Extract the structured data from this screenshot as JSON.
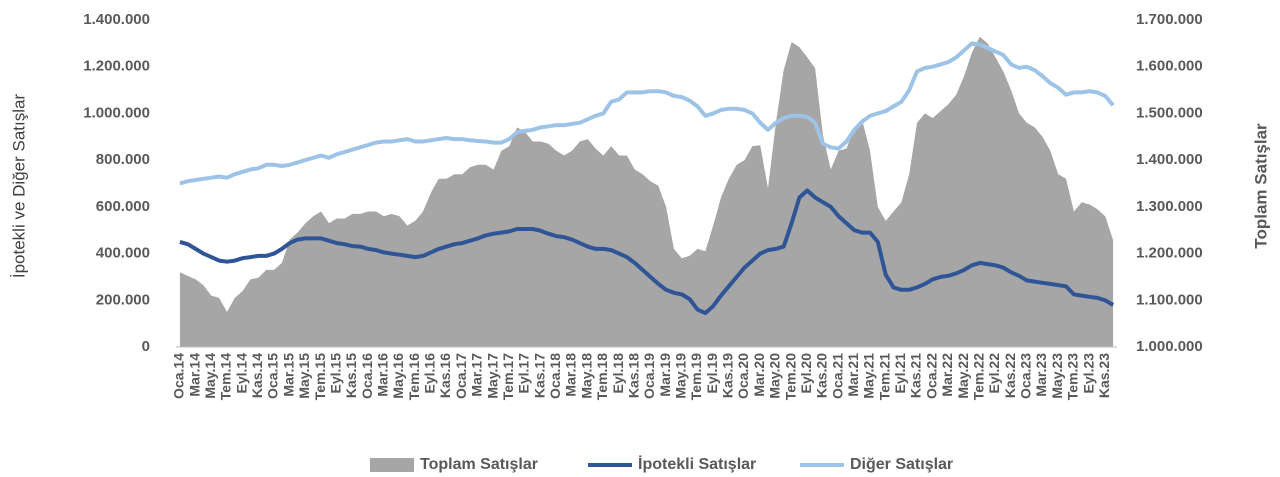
{
  "chart_data": {
    "type": "combo",
    "y_label": "İpotekli ve Diğer Satışlar",
    "y2_label": "Toplam Satışlar",
    "categories": [
      "Oca.14",
      null,
      "Mar.14",
      null,
      "May.14",
      null,
      "Tem.14",
      null,
      "Eyl.14",
      null,
      "Kas.14",
      null,
      "Oca.15",
      null,
      "Mar.15",
      null,
      "May.15",
      null,
      "Tem.15",
      null,
      "Eyl.15",
      null,
      "Kas.15",
      null,
      "Oca.16",
      null,
      "Mar.16",
      null,
      "May.16",
      null,
      "Tem.16",
      null,
      "Eyl.16",
      null,
      "Kas.16",
      null,
      "Oca.17",
      null,
      "Mar.17",
      null,
      "May.17",
      null,
      "Tem.17",
      null,
      "Eyl.17",
      null,
      "Kas.17",
      null,
      "Oca.18",
      null,
      "Mar.18",
      null,
      "May.18",
      null,
      "Tem.18",
      null,
      "Eyl.18",
      null,
      "Kas.18",
      null,
      "Oca.19",
      null,
      "Mar.19",
      null,
      "May.19",
      null,
      "Tem.19",
      null,
      "Eyl.19",
      null,
      "Kas.19",
      null,
      "Oca.20",
      null,
      "Mar.20",
      null,
      "May.20",
      null,
      "Tem.20",
      null,
      "Eyl.20",
      null,
      "Kas.20",
      null,
      "Oca.21",
      null,
      "Mar.21",
      null,
      "May.21",
      null,
      "Tem.21",
      null,
      "Eyl.21",
      null,
      "Kas.21",
      null,
      "Oca.22",
      null,
      "Mar.22",
      null,
      "May.22",
      null,
      "Tem.22",
      null,
      "Eyl.22",
      null,
      "Kas.22",
      null,
      "Oca.23",
      null,
      "Mar.23",
      null,
      "May.23",
      null,
      "Tem.23",
      null,
      "Eyl.23",
      null,
      "Kas.23",
      null
    ],
    "series": [
      {
        "name": "Toplam Satışlar",
        "kind": "area",
        "axis": "y2",
        "color": "#a6a6a6",
        "values": [
          1160000,
          1152000,
          1145000,
          1132000,
          1110000,
          1105000,
          1075000,
          1105000,
          1120000,
          1145000,
          1148000,
          1165000,
          1165000,
          1180000,
          1230000,
          1245000,
          1265000,
          1280000,
          1290000,
          1265000,
          1275000,
          1275000,
          1285000,
          1285000,
          1290000,
          1290000,
          1280000,
          1285000,
          1280000,
          1260000,
          1270000,
          1290000,
          1330000,
          1360000,
          1360000,
          1370000,
          1370000,
          1385000,
          1390000,
          1390000,
          1380000,
          1420000,
          1430000,
          1470000,
          1460000,
          1440000,
          1440000,
          1435000,
          1420000,
          1410000,
          1420000,
          1440000,
          1445000,
          1425000,
          1410000,
          1430000,
          1410000,
          1410000,
          1380000,
          1370000,
          1355000,
          1345000,
          1300000,
          1210000,
          1190000,
          1195000,
          1210000,
          1205000,
          1260000,
          1320000,
          1360000,
          1390000,
          1400000,
          1430000,
          1432000,
          1340000,
          1480000,
          1593000,
          1653000,
          1642000,
          1620000,
          1597000,
          1454000,
          1380000,
          1420000,
          1425000,
          1470000,
          1486000,
          1420000,
          1300000,
          1270000,
          1290000,
          1310000,
          1370000,
          1480000,
          1500000,
          1490000,
          1505000,
          1520000,
          1540000,
          1580000,
          1630000,
          1664000,
          1650000,
          1620000,
          1590000,
          1550000,
          1500000,
          1480000,
          1470000,
          1450000,
          1420000,
          1370000,
          1360000,
          1290000,
          1310000,
          1305000,
          1295000,
          1280000,
          1229000
        ]
      },
      {
        "name": "İpotekli Satışlar",
        "kind": "line",
        "color": "#2f5597",
        "values": [
          450000,
          440000,
          420000,
          400000,
          385000,
          370000,
          365000,
          370000,
          380000,
          385000,
          390000,
          390000,
          400000,
          420000,
          445000,
          460000,
          465000,
          465000,
          465000,
          455000,
          445000,
          440000,
          432000,
          430000,
          420000,
          415000,
          405000,
          400000,
          395000,
          390000,
          385000,
          390000,
          405000,
          420000,
          430000,
          440000,
          445000,
          455000,
          465000,
          478000,
          485000,
          490000,
          495000,
          505000,
          505000,
          505000,
          498000,
          485000,
          475000,
          470000,
          460000,
          445000,
          430000,
          420000,
          420000,
          415000,
          400000,
          385000,
          360000,
          330000,
          300000,
          270000,
          245000,
          232000,
          225000,
          205000,
          160000,
          145000,
          175000,
          220000,
          260000,
          300000,
          340000,
          370000,
          400000,
          415000,
          420000,
          430000,
          530000,
          640000,
          670000,
          640000,
          620000,
          600000,
          560000,
          530000,
          500000,
          490000,
          490000,
          450000,
          310000,
          255000,
          245000,
          245000,
          255000,
          270000,
          290000,
          300000,
          305000,
          315000,
          330000,
          350000,
          360000,
          355000,
          350000,
          340000,
          320000,
          305000,
          285000,
          280000,
          275000,
          270000,
          265000,
          260000,
          225000,
          220000,
          215000,
          210000,
          200000,
          180000
        ]
      },
      {
        "name": "Diğer Satışlar",
        "kind": "line",
        "color": "#9dc3e6",
        "values": [
          700000,
          710000,
          715000,
          720000,
          725000,
          730000,
          725000,
          740000,
          750000,
          760000,
          765000,
          780000,
          780000,
          775000,
          780000,
          790000,
          800000,
          810000,
          820000,
          810000,
          825000,
          835000,
          845000,
          855000,
          865000,
          875000,
          880000,
          880000,
          885000,
          890000,
          880000,
          880000,
          885000,
          890000,
          895000,
          890000,
          890000,
          885000,
          882000,
          880000,
          875000,
          875000,
          890000,
          920000,
          925000,
          930000,
          940000,
          945000,
          950000,
          950000,
          955000,
          960000,
          975000,
          990000,
          1000000,
          1050000,
          1060000,
          1090000,
          1090000,
          1090000,
          1095000,
          1095000,
          1090000,
          1075000,
          1070000,
          1055000,
          1030000,
          990000,
          1000000,
          1015000,
          1020000,
          1020000,
          1015000,
          1000000,
          960000,
          930000,
          960000,
          980000,
          990000,
          990000,
          985000,
          960000,
          870000,
          855000,
          850000,
          880000,
          930000,
          965000,
          990000,
          1000000,
          1010000,
          1030000,
          1050000,
          1100000,
          1180000,
          1195000,
          1200000,
          1210000,
          1220000,
          1240000,
          1270000,
          1300000,
          1295000,
          1280000,
          1265000,
          1250000,
          1210000,
          1195000,
          1200000,
          1185000,
          1160000,
          1130000,
          1110000,
          1080000,
          1090000,
          1090000,
          1095000,
          1090000,
          1075000,
          1035000
        ]
      }
    ],
    "ylim": [
      0,
      1400000
    ],
    "yticks": [
      0,
      {
        "value": 200000,
        "label": "200.000"
      },
      {
        "value": 400000,
        "label": "400.000"
      },
      {
        "value": 600000,
        "label": "600.000"
      },
      {
        "value": 800000,
        "label": "800.000"
      },
      {
        "value": 1000000,
        "label": "1.000.000"
      },
      {
        "value": 1200000,
        "label": "1.200.000"
      },
      {
        "value": 1400000,
        "label": "1.400.000"
      }
    ],
    "y2lim": [
      1000000,
      1700000
    ],
    "y2ticks": [
      {
        "value": 1000000,
        "label": "1.000.000"
      },
      {
        "value": 1100000,
        "label": "1.100.000"
      },
      {
        "value": 1200000,
        "label": "1.200.000"
      },
      {
        "value": 1300000,
        "label": "1.300.000"
      },
      {
        "value": 1400000,
        "label": "1.400.000"
      },
      {
        "value": 1500000,
        "label": "1.500.000"
      },
      {
        "value": 1600000,
        "label": "1.600.000"
      },
      {
        "value": 1700000,
        "label": "1.700.000"
      }
    ],
    "legend": "bottom",
    "grid": false
  }
}
